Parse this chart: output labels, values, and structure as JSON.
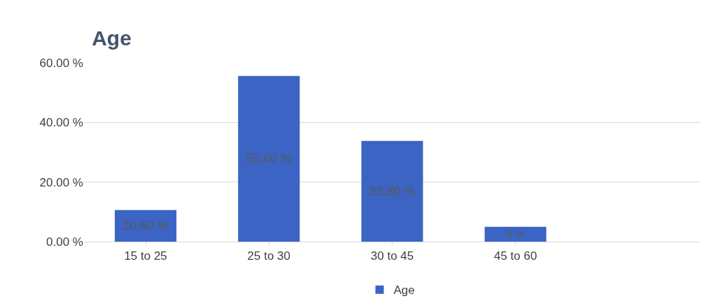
{
  "chart_data": {
    "type": "bar",
    "title": "Age",
    "categories": [
      "15 to 25",
      "25 to 30",
      "30 to 45",
      "45 to 60",
      null
    ],
    "series": [
      {
        "name": "Age",
        "color": "#3b64c4",
        "values": [
          10.6,
          55.6,
          33.8,
          5,
          null
        ],
        "value_labels": [
          "10.60 %",
          "55.60 %",
          "33.80 %",
          "5 %",
          null
        ]
      }
    ],
    "ylim": [
      0,
      60
    ],
    "yticks": [
      {
        "value": 0,
        "label": "0.00 %"
      },
      {
        "value": 20,
        "label": "20.00 %"
      },
      {
        "value": 40,
        "label": "40.00 %"
      },
      {
        "value": 60,
        "label": "60.00 %"
      }
    ],
    "grid": "y",
    "legend": "bottom"
  }
}
